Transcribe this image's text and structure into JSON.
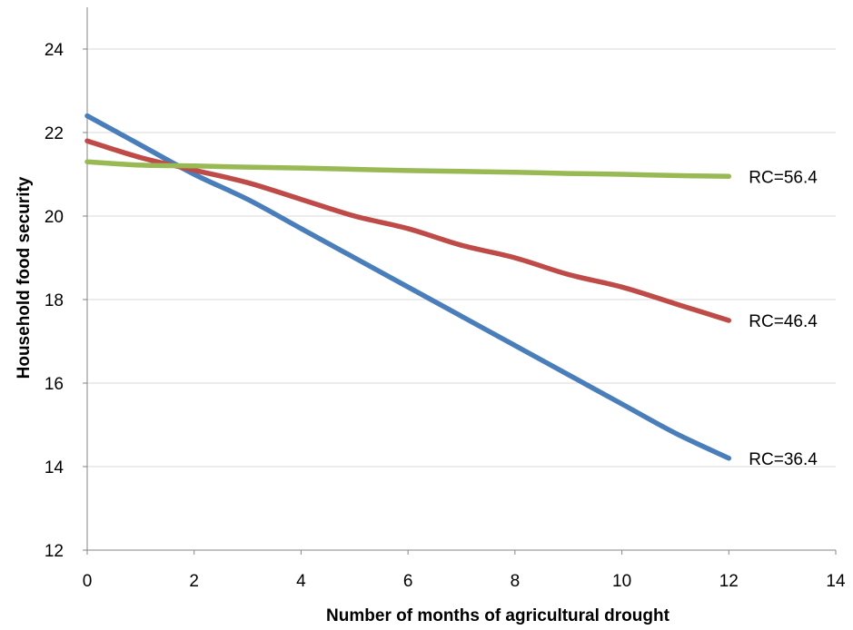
{
  "chart_data": {
    "type": "line",
    "title": "",
    "xlabel": "Number of months of agricultural drought",
    "ylabel": "Household food security",
    "xlim": [
      0,
      14
    ],
    "ylim": [
      12,
      25
    ],
    "xticks": [
      0,
      2,
      4,
      6,
      8,
      10,
      12,
      14
    ],
    "yticks": [
      12,
      14,
      16,
      18,
      20,
      22,
      24
    ],
    "grid": "horizontal",
    "legend": "none",
    "series": [
      {
        "name": "RC=36.4",
        "color": "#4a7ebb",
        "x": [
          0,
          1,
          2,
          3,
          4,
          5,
          6,
          7,
          8,
          9,
          10,
          11,
          12
        ],
        "y": [
          22.4,
          21.7,
          21.0,
          20.4,
          19.7,
          19.0,
          18.3,
          17.6,
          16.9,
          16.2,
          15.5,
          14.8,
          14.2
        ]
      },
      {
        "name": "RC=46.4",
        "color": "#be4b48",
        "x": [
          0,
          1,
          2,
          3,
          4,
          5,
          6,
          7,
          8,
          9,
          10,
          11,
          12
        ],
        "y": [
          21.8,
          21.4,
          21.1,
          20.8,
          20.4,
          20.0,
          19.7,
          19.3,
          19.0,
          18.6,
          18.3,
          17.9,
          17.5
        ]
      },
      {
        "name": "RC=56.4",
        "color": "#98b954",
        "x": [
          0,
          1,
          2,
          3,
          4,
          5,
          6,
          7,
          8,
          9,
          10,
          11,
          12
        ],
        "y": [
          21.3,
          21.22,
          21.2,
          21.17,
          21.15,
          21.12,
          21.09,
          21.07,
          21.05,
          21.02,
          21.0,
          20.97,
          20.95
        ]
      }
    ]
  }
}
